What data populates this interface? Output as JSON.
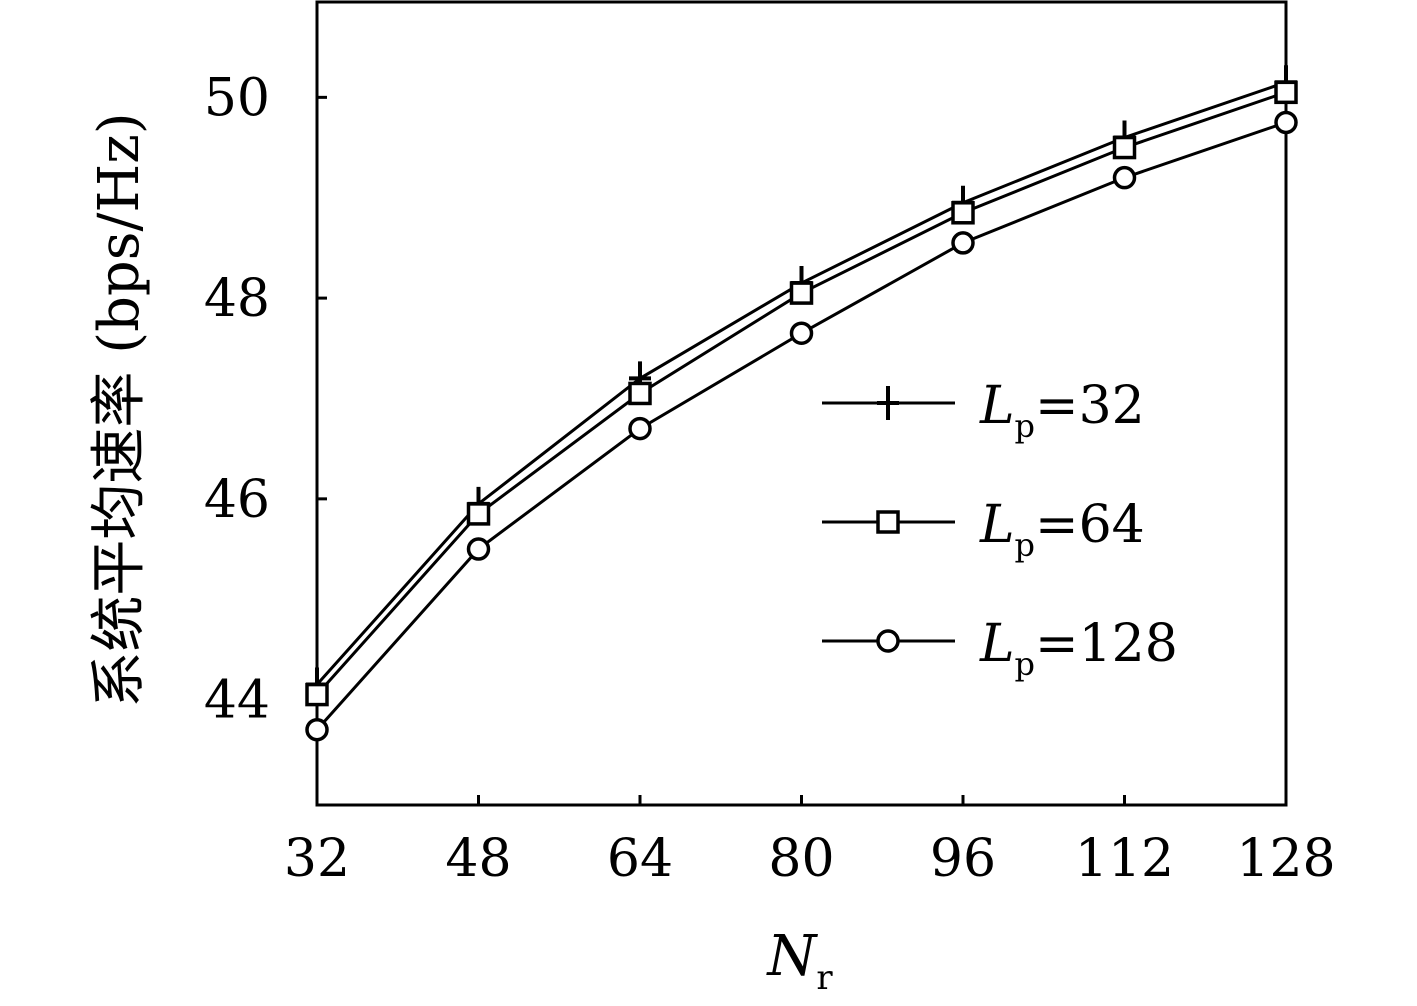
{
  "chart_data": {
    "type": "line",
    "x": [
      32,
      48,
      64,
      80,
      96,
      112,
      128
    ],
    "xticks": [
      "32",
      "48",
      "64",
      "80",
      "96",
      "112",
      "128"
    ],
    "yticks": [
      "44",
      "46",
      "48",
      "50"
    ],
    "xlim": [
      32,
      128
    ],
    "ylim": [
      42.95,
      50.95
    ],
    "xlabel_main": "N",
    "xlabel_sub": "r",
    "ylabel": "系统平均速率 (bps/Hz)",
    "grid": false,
    "legend_position": "right-middle",
    "series": [
      {
        "name": "Lp=32",
        "label_main": "L",
        "label_sub": "p",
        "label_rest": "=32",
        "marker": "plus",
        "values": [
          44.15,
          45.95,
          47.2,
          48.15,
          48.95,
          49.6,
          50.15
        ]
      },
      {
        "name": "Lp=64",
        "label_main": "L",
        "label_sub": "p",
        "label_rest": "=64",
        "marker": "square",
        "values": [
          44.05,
          45.85,
          47.05,
          48.05,
          48.85,
          49.5,
          50.05
        ]
      },
      {
        "name": "Lp=128",
        "label_main": "L",
        "label_sub": "p",
        "label_rest": "=128",
        "marker": "circle",
        "values": [
          43.7,
          45.5,
          46.7,
          47.65,
          48.55,
          49.2,
          49.75
        ]
      }
    ]
  }
}
